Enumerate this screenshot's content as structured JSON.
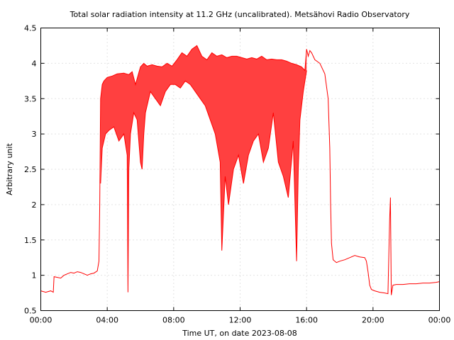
{
  "chart_data": {
    "type": "line",
    "title": "Total solar radiation intensity at 11.2 GHz (uncalibrated). Metsähovi Radio Observatory",
    "xlabel": "Time UT, on date 2023-08-08",
    "ylabel": "Arbitrary unit",
    "xlim_hours": [
      0,
      24
    ],
    "ylim": [
      0.5,
      4.5
    ],
    "x_ticks": [
      {
        "value": 0,
        "label": "00:00"
      },
      {
        "value": 4,
        "label": "04:00"
      },
      {
        "value": 8,
        "label": "08:00"
      },
      {
        "value": 12,
        "label": "12:00"
      },
      {
        "value": 16,
        "label": "16:00"
      },
      {
        "value": 20,
        "label": "20:00"
      },
      {
        "value": 24,
        "label": "00:00"
      }
    ],
    "y_ticks": [
      {
        "value": 0.5,
        "label": "0.5"
      },
      {
        "value": 1,
        "label": "1"
      },
      {
        "value": 1.5,
        "label": "1.5"
      },
      {
        "value": 2,
        "label": "2"
      },
      {
        "value": 2.5,
        "label": "2.5"
      },
      {
        "value": 3,
        "label": "3"
      },
      {
        "value": 3.5,
        "label": "3.5"
      },
      {
        "value": 4,
        "label": "4"
      },
      {
        "value": 4.5,
        "label": "4.5"
      }
    ],
    "grid": true,
    "line_color": "#ff0000",
    "fill_color": "#ff4040",
    "series_upper": {
      "x_hours": [
        0.0,
        0.3,
        0.6,
        0.75,
        0.8,
        1.0,
        1.2,
        1.4,
        1.6,
        1.8,
        2.0,
        2.2,
        2.4,
        2.6,
        2.8,
        3.0,
        3.2,
        3.4,
        3.5,
        3.55,
        3.6,
        3.7,
        3.8,
        4.0,
        4.3,
        4.6,
        5.0,
        5.3,
        5.5,
        5.7,
        6.0,
        6.2,
        6.4,
        6.7,
        7.0,
        7.3,
        7.6,
        7.9,
        8.2,
        8.5,
        8.8,
        9.1,
        9.4,
        9.7,
        10.0,
        10.3,
        10.6,
        10.9,
        11.2,
        11.5,
        11.8,
        12.1,
        12.4,
        12.7,
        13.0,
        13.3,
        13.6,
        13.9,
        14.2,
        14.5,
        14.8,
        15.1,
        15.4,
        15.7,
        15.9,
        16.0,
        16.1,
        16.2,
        16.3,
        16.5,
        16.8,
        17.1,
        17.3,
        17.4,
        17.45,
        17.5,
        17.6,
        17.8,
        18.0,
        18.3,
        18.6,
        18.9,
        19.2,
        19.5,
        19.6,
        19.7,
        19.8,
        19.9,
        20.1,
        20.4,
        20.7,
        20.9,
        21.0,
        21.05,
        21.1,
        21.2,
        21.4,
        21.8,
        22.2,
        22.6,
        23.0,
        23.4,
        23.8,
        24.0
      ],
      "y": [
        0.78,
        0.76,
        0.78,
        0.76,
        0.98,
        0.97,
        0.96,
        1.0,
        1.02,
        1.04,
        1.03,
        1.05,
        1.04,
        1.02,
        1.0,
        1.02,
        1.03,
        1.06,
        1.2,
        2.0,
        3.5,
        3.7,
        3.75,
        3.8,
        3.82,
        3.85,
        3.86,
        3.84,
        3.88,
        3.7,
        3.95,
        4.0,
        3.96,
        3.98,
        3.96,
        3.95,
        4.0,
        3.96,
        4.05,
        4.15,
        4.1,
        4.2,
        4.25,
        4.1,
        4.05,
        4.15,
        4.1,
        4.12,
        4.08,
        4.1,
        4.1,
        4.08,
        4.06,
        4.08,
        4.06,
        4.1,
        4.05,
        4.06,
        4.05,
        4.05,
        4.03,
        4.0,
        3.98,
        3.95,
        3.9,
        4.2,
        4.1,
        4.18,
        4.15,
        4.05,
        4.0,
        3.85,
        3.5,
        2.8,
        2.0,
        1.45,
        1.22,
        1.18,
        1.2,
        1.22,
        1.25,
        1.28,
        1.26,
        1.25,
        1.2,
        1.05,
        0.86,
        0.8,
        0.78,
        0.76,
        0.75,
        0.74,
        1.8,
        2.1,
        0.72,
        0.86,
        0.87,
        0.87,
        0.88,
        0.88,
        0.89,
        0.89,
        0.9,
        0.91
      ]
    },
    "series_lower": {
      "x_hours": [
        3.6,
        3.7,
        3.9,
        4.1,
        4.4,
        4.7,
        5.0,
        5.2,
        5.25,
        5.3,
        5.4,
        5.6,
        5.8,
        6.0,
        6.1,
        6.2,
        6.3,
        6.6,
        6.9,
        7.2,
        7.5,
        7.8,
        8.1,
        8.4,
        8.7,
        9.0,
        9.3,
        9.6,
        9.9,
        10.2,
        10.5,
        10.8,
        10.9,
        11.1,
        11.3,
        11.6,
        11.9,
        12.2,
        12.5,
        12.8,
        13.1,
        13.4,
        13.7,
        14.0,
        14.3,
        14.6,
        14.9,
        15.2,
        15.4,
        15.5,
        15.6,
        15.8,
        16.0
      ],
      "y": [
        2.3,
        2.8,
        3.0,
        3.05,
        3.1,
        2.9,
        3.0,
        2.7,
        0.76,
        2.5,
        3.0,
        3.3,
        3.2,
        2.6,
        2.5,
        3.0,
        3.3,
        3.6,
        3.5,
        3.4,
        3.6,
        3.7,
        3.7,
        3.65,
        3.75,
        3.7,
        3.6,
        3.5,
        3.4,
        3.2,
        3.0,
        2.6,
        1.35,
        2.4,
        2.0,
        2.5,
        2.7,
        2.3,
        2.7,
        2.9,
        3.0,
        2.6,
        2.8,
        3.3,
        2.6,
        2.4,
        2.1,
        2.9,
        1.2,
        2.5,
        3.2,
        3.6,
        3.9
      ]
    }
  }
}
